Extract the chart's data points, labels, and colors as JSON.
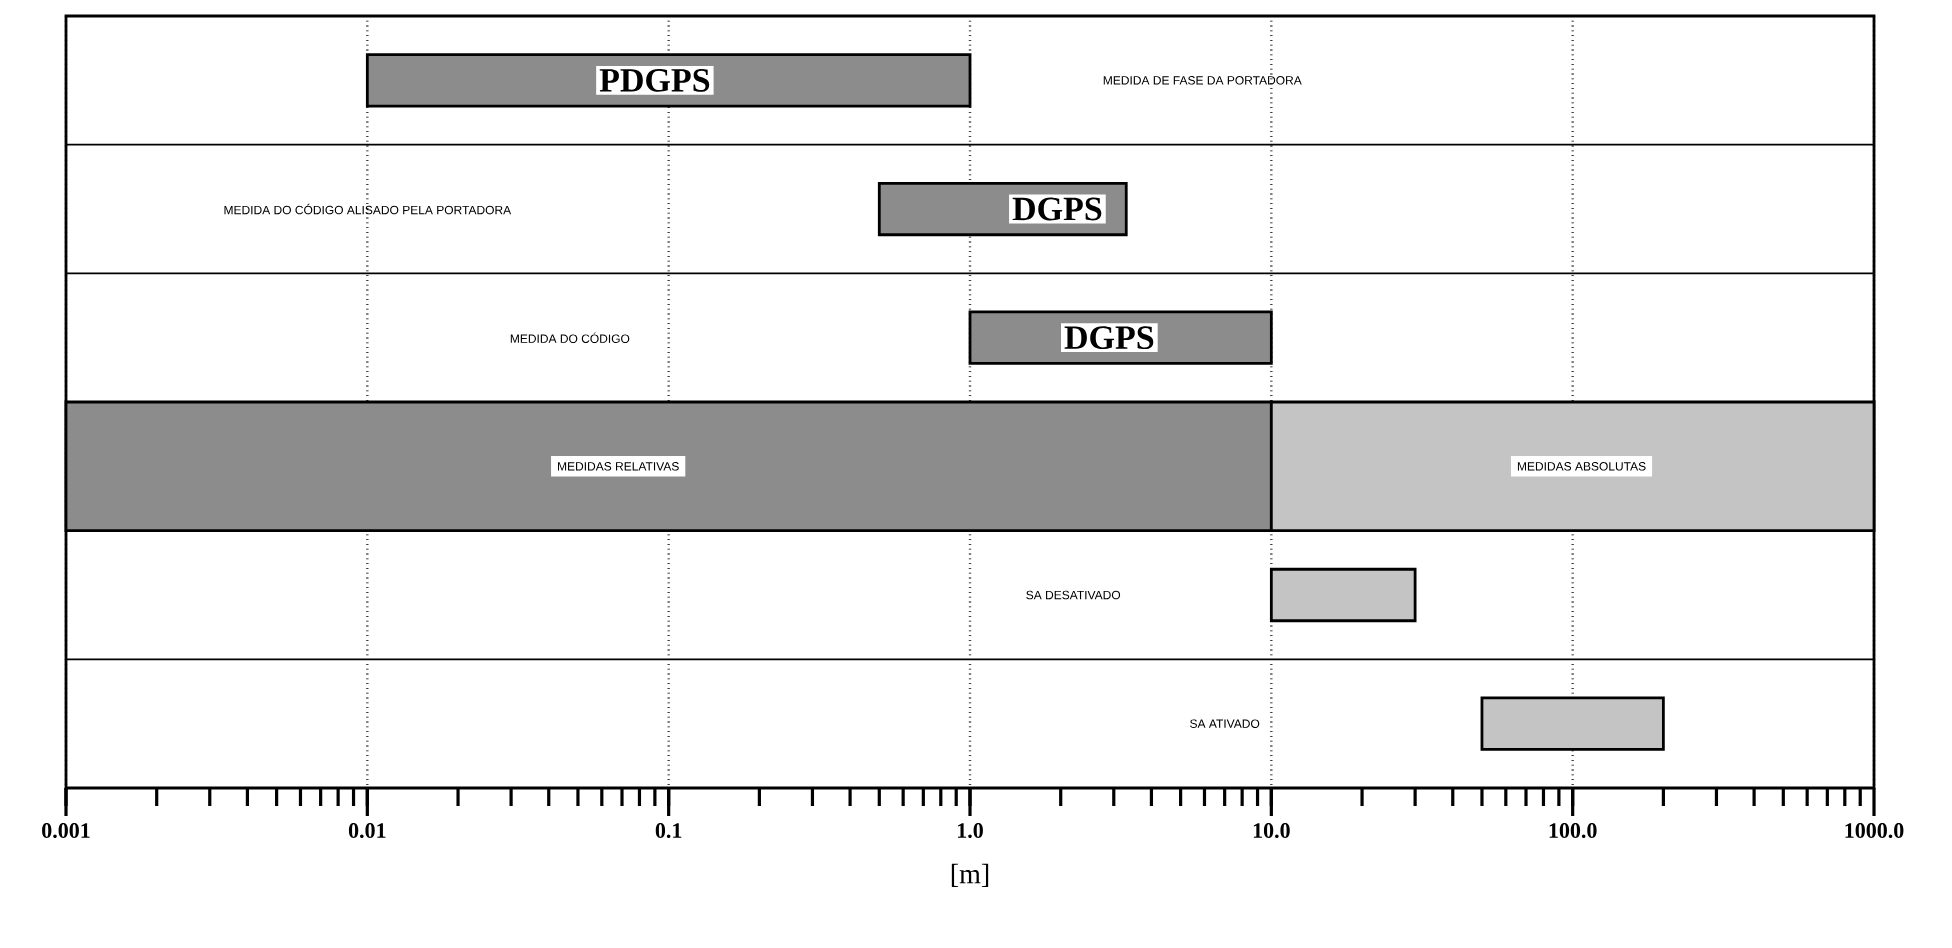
{
  "chart_data": {
    "type": "bar",
    "orientation": "horizontal",
    "log": "x",
    "grid": "x",
    "xlabel": "[m]",
    "categories": [
      null,
      null,
      null,
      null,
      null,
      null
    ],
    "series": [
      {
        "color": "#8c8c8c",
        "base": [
          0.01,
          0.5,
          1,
          0.001,
          null,
          null
        ],
        "values": [
          0.99,
          2.8,
          9,
          9.999,
          null,
          null
        ]
      },
      {
        "color": "#c4c4c4",
        "base": [
          null,
          null,
          null,
          10,
          10,
          50
        ],
        "values": [
          null,
          null,
          null,
          990,
          20,
          150
        ]
      }
    ],
    "xlim": [
      0.001,
      1000
    ],
    "xticks": [
      0.001,
      0.01,
      0.1,
      {
        "value": 1,
        "label": "1.0"
      },
      {
        "value": 10,
        "label": "10.0"
      },
      {
        "value": 100,
        "label": "100.0"
      },
      {
        "value": 1000,
        "label": "1000.0"
      }
    ],
    "annotations": [
      "PDGPS",
      "DGPS",
      "DGPS",
      "MEDIDA DE FASE DA PORTADORA",
      "MEDIDA DO CÓDIGO ALISADO PELA PORTADORA",
      "MEDIDA DO CÓDIGO",
      "MEDIDAS RELATIVAS",
      "MEDIDAS ABSOLUTAS",
      "SA DESATIVADO",
      "SA ATIVADO"
    ]
  }
}
